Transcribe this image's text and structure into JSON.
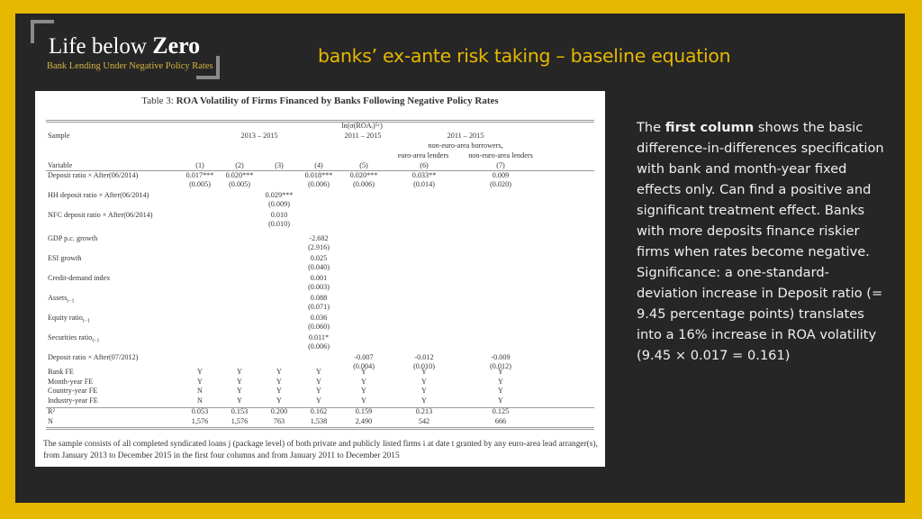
{
  "logo": {
    "title_prefix": "Life below ",
    "title_bold": "Zero",
    "subtitle": "Bank Lending Under Negative Policy Rates"
  },
  "slide": {
    "title": "banks’ ex-ante risk taking – baseline equation"
  },
  "table": {
    "caption_prefix": "Table 3: ",
    "caption_bold": "ROA Volatility of Firms Financed by Banks Following Negative Policy Rates",
    "dep_var": "ln(σ(ROAᵢ)⁵ʸ)",
    "sample_label": "Sample",
    "samples": [
      "2013 – 2015",
      "2011 – 2015",
      "2011 – 2015"
    ],
    "subheader_1": "non-euro-area borrowers,",
    "subheader_2a": "euro-area lenders",
    "subheader_2b": "non-euro-area lenders",
    "variable_label": "Variable",
    "columns": [
      "(1)",
      "(2)",
      "(3)",
      "(4)",
      "(5)",
      "(6)",
      "(7)"
    ],
    "rows": [
      {
        "label": "Deposit ratio × After(06/2014)",
        "values": [
          "0.017***",
          "0.020***",
          "",
          "0.018***",
          "0.020***",
          "0.033**",
          "0.009"
        ],
        "se": [
          "(0.005)",
          "(0.005)",
          "",
          "(0.006)",
          "(0.006)",
          "(0.014)",
          "(0.020)"
        ]
      },
      {
        "label": "HH deposit ratio × After(06/2014)",
        "values": [
          "",
          "",
          "0.029***",
          "",
          "",
          "",
          ""
        ],
        "se": [
          "",
          "",
          "(0.009)",
          "",
          "",
          "",
          ""
        ]
      },
      {
        "label": "NFC deposit ratio × After(06/2014)",
        "values": [
          "",
          "",
          "0.010",
          "",
          "",
          "",
          ""
        ],
        "se": [
          "",
          "",
          "(0.010)",
          "",
          "",
          "",
          ""
        ]
      },
      {
        "label": "GDP p.c. growth",
        "values": [
          "",
          "",
          "",
          "-2.682",
          "",
          "",
          ""
        ],
        "se": [
          "",
          "",
          "",
          "(2.916)",
          "",
          "",
          ""
        ]
      },
      {
        "label": "ESI growth",
        "values": [
          "",
          "",
          "",
          "0.025",
          "",
          "",
          ""
        ],
        "se": [
          "",
          "",
          "",
          "(0.040)",
          "",
          "",
          ""
        ]
      },
      {
        "label": "Credit-demand index",
        "values": [
          "",
          "",
          "",
          "0.001",
          "",
          "",
          ""
        ],
        "se": [
          "",
          "",
          "",
          "(0.003)",
          "",
          "",
          ""
        ]
      },
      {
        "label": "Assets",
        "sub": "t−1",
        "values": [
          "",
          "",
          "",
          "0.088",
          "",
          "",
          ""
        ],
        "se": [
          "",
          "",
          "",
          "(0.071)",
          "",
          "",
          ""
        ]
      },
      {
        "label": "Equity ratio",
        "sub": "t−1",
        "values": [
          "",
          "",
          "",
          "0.036",
          "",
          "",
          ""
        ],
        "se": [
          "",
          "",
          "",
          "(0.060)",
          "",
          "",
          ""
        ]
      },
      {
        "label": "Securities ratio",
        "sub": "t−1",
        "values": [
          "",
          "",
          "",
          "0.011*",
          "",
          "",
          ""
        ],
        "se": [
          "",
          "",
          "",
          "(0.006)",
          "",
          "",
          ""
        ]
      },
      {
        "label": "Deposit ratio × After(07/2012)",
        "values": [
          "",
          "",
          "",
          "",
          "-0.007",
          "-0.012",
          "-0.009"
        ],
        "se": [
          "",
          "",
          "",
          "",
          "(0.004)",
          "(0.010)",
          "(0.012)"
        ]
      }
    ],
    "fe_rows": [
      {
        "label": "Bank FE",
        "values": [
          "Y",
          "Y",
          "Y",
          "Y",
          "Y",
          "Y",
          "Y"
        ]
      },
      {
        "label": "Month-year FE",
        "values": [
          "Y",
          "Y",
          "Y",
          "Y",
          "Y",
          "Y",
          "Y"
        ]
      },
      {
        "label": "Country-year FE",
        "values": [
          "N",
          "Y",
          "Y",
          "Y",
          "Y",
          "Y",
          "Y"
        ]
      },
      {
        "label": "Industry-year FE",
        "values": [
          "N",
          "Y",
          "Y",
          "Y",
          "Y",
          "Y",
          "Y"
        ]
      }
    ],
    "stats_rows": [
      {
        "label": "R²",
        "values": [
          "0.053",
          "0.153",
          "0.200",
          "0.162",
          "0.159",
          "0.213",
          "0.125"
        ]
      },
      {
        "label": "N",
        "values": [
          "1,576",
          "1,576",
          "763",
          "1,538",
          "2,490",
          "542",
          "666"
        ]
      }
    ],
    "note": "The sample consists of all completed syndicated loans j (package level) of both private and publicly listed firms i at date t granted by any euro-area lead arranger(s), from January 2013 to December 2015 in the first four columns and from January 2011 to December 2015"
  },
  "description": {
    "intro_1": "The ",
    "intro_bold": "first column",
    "intro_2": " shows the basic difference-in-differences specification with bank and month-year fixed effects only. Can find a positive and significant treatment effect. Banks with more deposits finance riskier firms when rates become negative.",
    "significance": "Significance: a one-standard-deviation increase in Deposit ratio (= 9.45 percentage points) translates into a 16% increase in ROA volatility (9.45 × 0.017 = 0.161)"
  }
}
